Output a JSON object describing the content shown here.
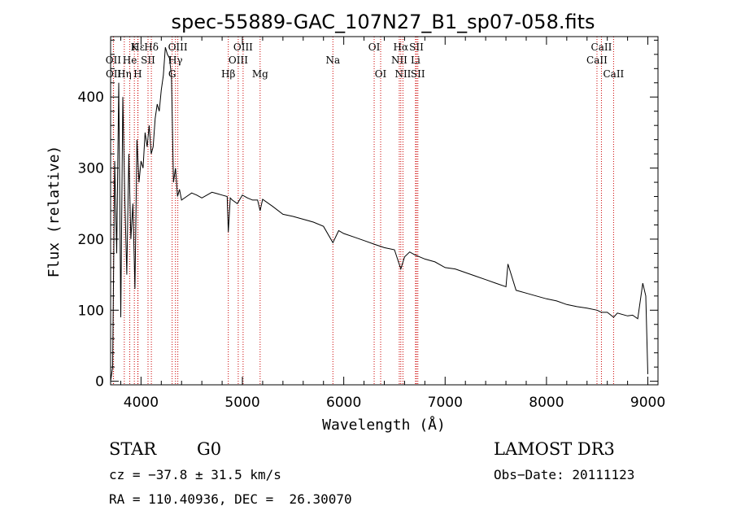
{
  "chart_data": {
    "type": "line",
    "title": "spec-55889-GAC_107N27_B1_sp07-058.fits",
    "xlabel": "Wavelength (Å)",
    "ylabel": "Flux (relative)",
    "xlim": [
      3700,
      9100
    ],
    "ylim": [
      -5,
      485
    ],
    "xticks": [
      4000,
      5000,
      6000,
      7000,
      8000,
      9000
    ],
    "yticks": [
      0,
      100,
      200,
      300,
      400
    ],
    "series": [
      {
        "name": "spectrum",
        "x": [
          3700,
          3720,
          3740,
          3760,
          3780,
          3800,
          3820,
          3840,
          3860,
          3880,
          3900,
          3920,
          3940,
          3960,
          3980,
          4000,
          4020,
          4040,
          4060,
          4080,
          4100,
          4120,
          4140,
          4160,
          4180,
          4200,
          4220,
          4240,
          4260,
          4280,
          4300,
          4320,
          4340,
          4360,
          4380,
          4400,
          4450,
          4500,
          4550,
          4600,
          4650,
          4700,
          4750,
          4800,
          4850,
          4861,
          4880,
          4900,
          4950,
          5000,
          5050,
          5100,
          5150,
          5175,
          5200,
          5300,
          5400,
          5500,
          5600,
          5700,
          5800,
          5893,
          5950,
          6000,
          6100,
          6200,
          6300,
          6400,
          6500,
          6563,
          6600,
          6650,
          6700,
          6800,
          6900,
          7000,
          7100,
          7200,
          7300,
          7400,
          7500,
          7600,
          7620,
          7700,
          7800,
          7900,
          8000,
          8100,
          8200,
          8300,
          8400,
          8500,
          8542,
          8600,
          8662,
          8700,
          8800,
          8850,
          8900,
          8950,
          8980,
          9000
        ],
        "values": [
          0,
          20,
          310,
          180,
          420,
          90,
          400,
          260,
          150,
          320,
          200,
          250,
          130,
          340,
          280,
          310,
          300,
          350,
          330,
          360,
          320,
          330,
          370,
          390,
          380,
          410,
          430,
          470,
          460,
          455,
          430,
          280,
          300,
          260,
          270,
          255,
          260,
          265,
          262,
          258,
          262,
          266,
          264,
          262,
          260,
          210,
          258,
          255,
          250,
          262,
          258,
          255,
          255,
          240,
          256,
          246,
          235,
          232,
          228,
          224,
          218,
          195,
          212,
          208,
          203,
          198,
          193,
          188,
          185,
          158,
          175,
          182,
          178,
          172,
          168,
          160,
          158,
          153,
          148,
          143,
          138,
          133,
          165,
          128,
          124,
          120,
          116,
          113,
          108,
          105,
          103,
          100,
          97,
          97,
          90,
          96,
          92,
          93,
          88,
          138,
          120,
          10
        ]
      }
    ],
    "spectral_lines": [
      {
        "label": "Hε",
        "wavelength": 3970,
        "row": 1
      },
      {
        "label": "K",
        "wavelength": 3934,
        "row": 1
      },
      {
        "label": "Hδ",
        "wavelength": 4102,
        "row": 1
      },
      {
        "label": "OIII",
        "wavelength": 4363,
        "row": 1
      },
      {
        "label": "OIII",
        "wavelength": 5007,
        "row": 1
      },
      {
        "label": "OI",
        "wavelength": 6300,
        "row": 1
      },
      {
        "label": "Hα",
        "wavelength": 6563,
        "row": 1
      },
      {
        "label": "SII",
        "wavelength": 6717,
        "row": 1
      },
      {
        "label": "CaII",
        "wavelength": 8542,
        "row": 1
      },
      {
        "label": "OII",
        "wavelength": 3727,
        "row": 2
      },
      {
        "label": "He",
        "wavelength": 3889,
        "row": 2
      },
      {
        "label": "SII",
        "wavelength": 4069,
        "row": 2
      },
      {
        "label": "Hγ",
        "wavelength": 4340,
        "row": 2
      },
      {
        "label": "OIII",
        "wavelength": 4959,
        "row": 2
      },
      {
        "label": "Na",
        "wavelength": 5893,
        "row": 2
      },
      {
        "label": "NII",
        "wavelength": 6548,
        "row": 2
      },
      {
        "label": "Li",
        "wavelength": 6708,
        "row": 2
      },
      {
        "label": "CaII",
        "wavelength": 8498,
        "row": 2
      },
      {
        "label": "OII",
        "wavelength": 3729,
        "row": 3
      },
      {
        "label": "Hη",
        "wavelength": 3835,
        "row": 3
      },
      {
        "label": "H",
        "wavelength": 3968,
        "row": 3
      },
      {
        "label": "G",
        "wavelength": 4307,
        "row": 3
      },
      {
        "label": "Hβ",
        "wavelength": 4861,
        "row": 3
      },
      {
        "label": "Mg",
        "wavelength": 5175,
        "row": 3
      },
      {
        "label": "OI",
        "wavelength": 6364,
        "row": 3
      },
      {
        "label": "NII",
        "wavelength": 6584,
        "row": 3
      },
      {
        "label": "SII",
        "wavelength": 6731,
        "row": 3
      },
      {
        "label": "CaII",
        "wavelength": 8662,
        "row": 3
      }
    ]
  },
  "info": {
    "object_class": "STAR",
    "subclass": "G0",
    "survey": "LAMOST DR3",
    "cz": "cz = −37.8 ± 31.5 km/s",
    "obs_date": "Obs−Date: 20111123",
    "coords": "RA = 110.40936, DEC =  26.30070"
  },
  "colors": {
    "line_marker": "#cc0000",
    "spectrum": "#000000"
  }
}
